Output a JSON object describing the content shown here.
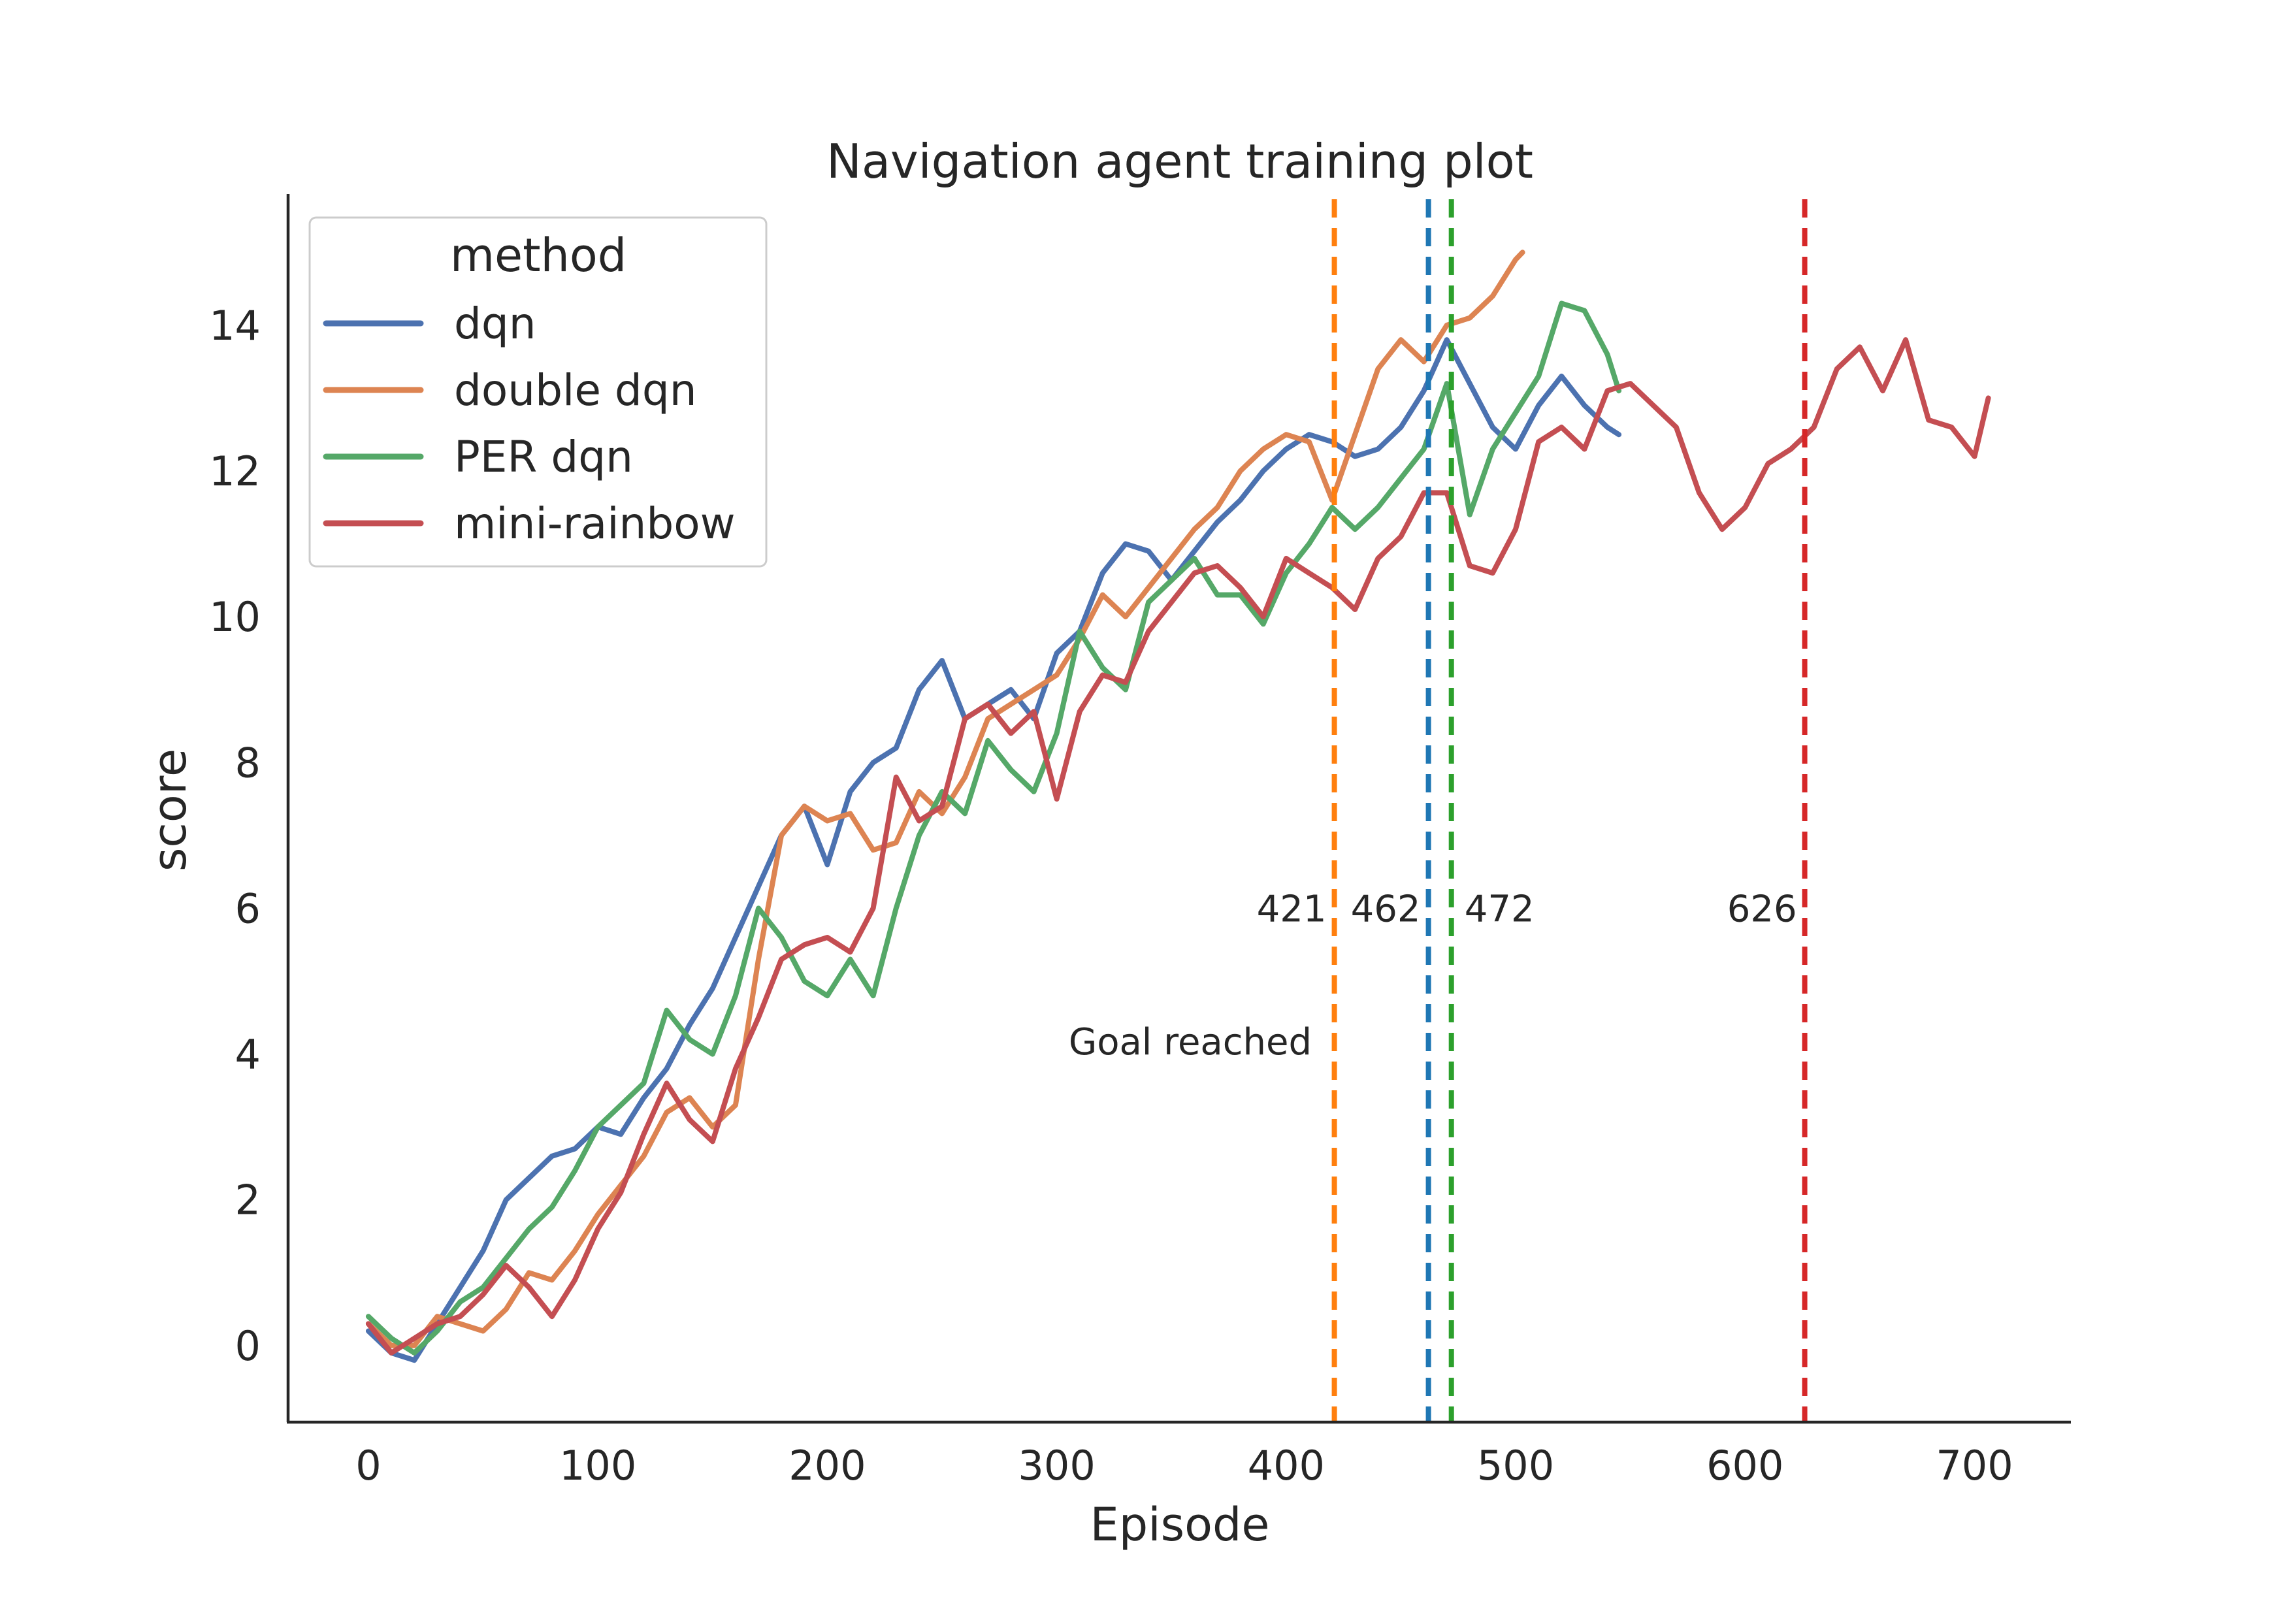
{
  "chart_data": {
    "type": "line",
    "title": "Navigation agent training plot",
    "xlabel": "Episode",
    "ylabel": "score",
    "xlim": [
      -35,
      742
    ],
    "ylim": [
      -1.05,
      15.8
    ],
    "xticks": [
      0,
      100,
      200,
      300,
      400,
      500,
      600,
      700
    ],
    "yticks": [
      0,
      2,
      4,
      6,
      8,
      10,
      12,
      14
    ],
    "grid": false,
    "legend": {
      "title": "method",
      "position": "top-left"
    },
    "series": [
      {
        "name": "dqn",
        "color": "#4c72b0",
        "x": [
          0,
          10,
          20,
          30,
          40,
          50,
          60,
          70,
          80,
          90,
          100,
          110,
          120,
          130,
          140,
          150,
          160,
          170,
          180,
          190,
          200,
          210,
          220,
          230,
          240,
          250,
          260,
          270,
          280,
          290,
          300,
          310,
          320,
          330,
          340,
          350,
          360,
          370,
          380,
          390,
          400,
          410,
          420,
          430,
          440,
          450,
          460,
          470,
          480,
          490,
          500,
          510,
          520,
          530,
          540,
          545
        ],
        "y": [
          0.2,
          -0.1,
          -0.2,
          0.3,
          0.8,
          1.3,
          2.0,
          2.3,
          2.6,
          2.7,
          3.0,
          2.9,
          3.4,
          3.8,
          4.4,
          4.9,
          5.6,
          6.3,
          7.0,
          7.4,
          6.6,
          7.6,
          8.0,
          8.2,
          9.0,
          9.4,
          8.6,
          8.8,
          9.0,
          8.6,
          9.5,
          9.8,
          10.6,
          11.0,
          10.9,
          10.5,
          10.9,
          11.3,
          11.6,
          12.0,
          12.3,
          12.5,
          12.4,
          12.2,
          12.3,
          12.6,
          13.1,
          13.8,
          13.2,
          12.6,
          12.3,
          12.9,
          13.3,
          12.9,
          12.6,
          12.5
        ]
      },
      {
        "name": "double dqn",
        "color": "#dd8452",
        "x": [
          0,
          10,
          20,
          30,
          40,
          50,
          60,
          70,
          80,
          90,
          100,
          110,
          120,
          130,
          140,
          150,
          160,
          170,
          180,
          190,
          200,
          210,
          220,
          230,
          240,
          250,
          260,
          270,
          280,
          290,
          300,
          310,
          320,
          330,
          340,
          350,
          360,
          370,
          380,
          390,
          400,
          410,
          420,
          430,
          440,
          450,
          460,
          470,
          480,
          490,
          500,
          503
        ],
        "y": [
          0.3,
          0.0,
          0.0,
          0.4,
          0.3,
          0.2,
          0.5,
          1.0,
          0.9,
          1.3,
          1.8,
          2.2,
          2.6,
          3.2,
          3.4,
          3.0,
          3.3,
          5.3,
          7.0,
          7.4,
          7.2,
          7.3,
          6.8,
          6.9,
          7.6,
          7.3,
          7.8,
          8.6,
          8.8,
          9.0,
          9.2,
          9.7,
          10.3,
          10.0,
          10.4,
          10.8,
          11.2,
          11.5,
          12.0,
          12.3,
          12.5,
          12.4,
          11.6,
          12.5,
          13.4,
          13.8,
          13.5,
          14.0,
          14.1,
          14.4,
          14.9,
          15.0
        ]
      },
      {
        "name": "PER dqn",
        "color": "#55a868",
        "x": [
          0,
          10,
          20,
          30,
          40,
          50,
          60,
          70,
          80,
          90,
          100,
          110,
          120,
          130,
          140,
          150,
          160,
          170,
          180,
          190,
          200,
          210,
          220,
          230,
          240,
          250,
          260,
          270,
          280,
          290,
          300,
          310,
          320,
          330,
          340,
          350,
          360,
          370,
          380,
          390,
          400,
          410,
          420,
          430,
          440,
          450,
          460,
          470,
          480,
          490,
          500,
          510,
          520,
          530,
          540,
          545
        ],
        "y": [
          0.4,
          0.1,
          -0.1,
          0.2,
          0.6,
          0.8,
          1.2,
          1.6,
          1.9,
          2.4,
          3.0,
          3.3,
          3.6,
          4.6,
          4.2,
          4.0,
          4.8,
          6.0,
          5.6,
          5.0,
          4.8,
          5.3,
          4.8,
          6.0,
          7.0,
          7.6,
          7.3,
          8.3,
          7.9,
          7.6,
          8.4,
          9.8,
          9.3,
          9.0,
          10.2,
          10.5,
          10.8,
          10.3,
          10.3,
          9.9,
          10.6,
          11.0,
          11.5,
          11.2,
          11.5,
          11.9,
          12.3,
          13.2,
          11.4,
          12.3,
          12.8,
          13.3,
          14.3,
          14.2,
          13.6,
          13.1
        ]
      },
      {
        "name": "mini-rainbow",
        "color": "#c44e52",
        "x": [
          0,
          10,
          20,
          30,
          40,
          50,
          60,
          70,
          80,
          90,
          100,
          110,
          120,
          130,
          140,
          150,
          160,
          170,
          180,
          190,
          200,
          210,
          220,
          230,
          240,
          250,
          260,
          270,
          280,
          290,
          300,
          310,
          320,
          330,
          340,
          350,
          360,
          370,
          380,
          390,
          400,
          410,
          420,
          430,
          440,
          450,
          460,
          470,
          480,
          490,
          500,
          510,
          520,
          530,
          540,
          550,
          560,
          570,
          580,
          590,
          600,
          610,
          620,
          630,
          640,
          650,
          660,
          670,
          680,
          690,
          700,
          706
        ],
        "y": [
          0.3,
          -0.1,
          0.1,
          0.3,
          0.4,
          0.7,
          1.1,
          0.8,
          0.4,
          0.9,
          1.6,
          2.1,
          2.9,
          3.6,
          3.1,
          2.8,
          3.8,
          4.5,
          5.3,
          5.5,
          5.6,
          5.4,
          6.0,
          7.8,
          7.2,
          7.4,
          8.6,
          8.8,
          8.4,
          8.7,
          7.5,
          8.7,
          9.2,
          9.1,
          9.8,
          10.2,
          10.6,
          10.7,
          10.4,
          10.0,
          10.8,
          10.6,
          10.4,
          10.1,
          10.8,
          11.1,
          11.7,
          11.7,
          10.7,
          10.6,
          11.2,
          12.4,
          12.6,
          12.3,
          13.1,
          13.2,
          12.9,
          12.6,
          11.7,
          11.2,
          11.5,
          12.1,
          12.3,
          12.6,
          13.4,
          13.7,
          13.1,
          13.8,
          12.7,
          12.6,
          12.2,
          13.0
        ]
      }
    ],
    "vlines": [
      {
        "x": 421,
        "color": "#ff7f0e",
        "label": "421"
      },
      {
        "x": 462,
        "color": "#1f77b4",
        "label": "462"
      },
      {
        "x": 472,
        "color": "#2ca02c",
        "label": "472"
      },
      {
        "x": 626,
        "color": "#d62728",
        "label": "626"
      }
    ],
    "annotation": "Goal reached"
  }
}
